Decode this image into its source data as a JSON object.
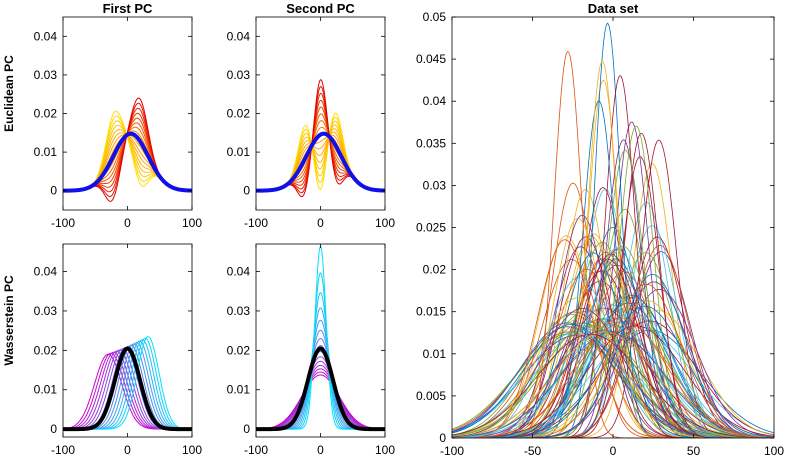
{
  "chart_data": [
    {
      "id": "euclid-first",
      "type": "line",
      "title": "First PC",
      "row_label": "Euclidean PC",
      "xlim": [
        -100,
        100
      ],
      "ylim": [
        -0.005,
        0.045
      ],
      "xticks": [
        -100,
        0,
        100
      ],
      "yticks": [
        0,
        0.01,
        0.02,
        0.03,
        0.04
      ],
      "ytick_labels": [
        "0",
        "0.01",
        "0.02",
        "0.03",
        "0.04"
      ],
      "family": {
        "kind": "euclid",
        "mean_center": 5,
        "mean_sigma": 27,
        "a": 0.011,
        "s1": 12,
        "s2": 12,
        "center1": -22,
        "center2": 20,
        "t_min": -1,
        "t_max": 1,
        "count": 17
      },
      "colors": {
        "from": "#ffe000",
        "mid": "#ff8c00",
        "to": "#e00000"
      },
      "main_curve": {
        "color": "#1010e8",
        "center": 5,
        "sigma": 27
      }
    },
    {
      "id": "euclid-second",
      "type": "line",
      "title": "Second PC",
      "row_label": "",
      "xlim": [
        -100,
        100
      ],
      "ylim": [
        -0.005,
        0.045
      ],
      "xticks": [
        -100,
        0,
        100
      ],
      "yticks": [
        0,
        0.01,
        0.02,
        0.03,
        0.04
      ],
      "ytick_labels": [
        "0",
        "0.01",
        "0.02",
        "0.03",
        "0.04"
      ],
      "family": {
        "kind": "euclid2",
        "mean_center": 5,
        "mean_sigma": 27,
        "a": 0.015,
        "s_mid": 9,
        "s_side": 10,
        "center_side": 25,
        "t_min": -1,
        "t_max": 1,
        "count": 17
      },
      "colors": {
        "from": "#ffe000",
        "mid": "#ff8c00",
        "to": "#e00000"
      },
      "main_curve": {
        "color": "#1010e8",
        "center": 5,
        "sigma": 27
      }
    },
    {
      "id": "wass-first",
      "type": "line",
      "title": "",
      "row_label": "Wasserstein PC",
      "xlim": [
        -100,
        100
      ],
      "ylim": [
        -0.002,
        0.047
      ],
      "xticks": [
        -100,
        0,
        100
      ],
      "yticks": [
        0,
        0.01,
        0.02,
        0.03,
        0.04
      ],
      "ytick_labels": [
        "0",
        "0.01",
        "0.02",
        "0.03",
        "0.04"
      ],
      "family": {
        "kind": "shift",
        "center_from": -30,
        "center_to": 32,
        "sigma_from": 21,
        "sigma_to": 17,
        "count": 15
      },
      "colors": {
        "from": "#cc00cc",
        "to": "#00e0ff"
      },
      "main_curve": {
        "color": "#000000",
        "center": 0,
        "sigma": 19.5
      }
    },
    {
      "id": "wass-second",
      "type": "line",
      "title": "",
      "row_label": "",
      "xlim": [
        -100,
        100
      ],
      "ylim": [
        -0.002,
        0.047
      ],
      "xticks": [
        -100,
        0,
        100
      ],
      "yticks": [
        0,
        0.01,
        0.02,
        0.03,
        0.04
      ],
      "ytick_labels": [
        "0",
        "0.01",
        "0.02",
        "0.03",
        "0.04"
      ],
      "family": {
        "kind": "scale",
        "center": 0,
        "sigma_from": 29,
        "sigma_to": 8.6,
        "count": 15
      },
      "colors": {
        "from": "#cc00cc",
        "to": "#00e0ff"
      },
      "main_curve": {
        "color": "#000000",
        "center": 0,
        "sigma": 19.5
      }
    },
    {
      "id": "dataset",
      "type": "line",
      "title": "Data set",
      "row_label": "",
      "xlim": [
        -100,
        100
      ],
      "ylim": [
        0,
        0.05
      ],
      "xticks": [
        -100,
        -50,
        0,
        50,
        100
      ],
      "yticks": [
        0,
        0.005,
        0.01,
        0.015,
        0.02,
        0.025,
        0.03,
        0.035,
        0.04,
        0.045,
        0.05
      ],
      "ytick_labels": [
        "0",
        "0.005",
        "0.01",
        "0.015",
        "0.02",
        "0.025",
        "0.03",
        "0.035",
        "0.04",
        "0.045",
        "0.05"
      ],
      "family": {
        "kind": "dataset",
        "count": 100,
        "center_range": [
          -30,
          30
        ],
        "sigma_range": [
          8,
          33
        ]
      },
      "palette": [
        "#0072bd",
        "#d95319",
        "#edb120",
        "#7e2f8e",
        "#77ac30",
        "#4dbeee",
        "#a2142f"
      ]
    }
  ]
}
